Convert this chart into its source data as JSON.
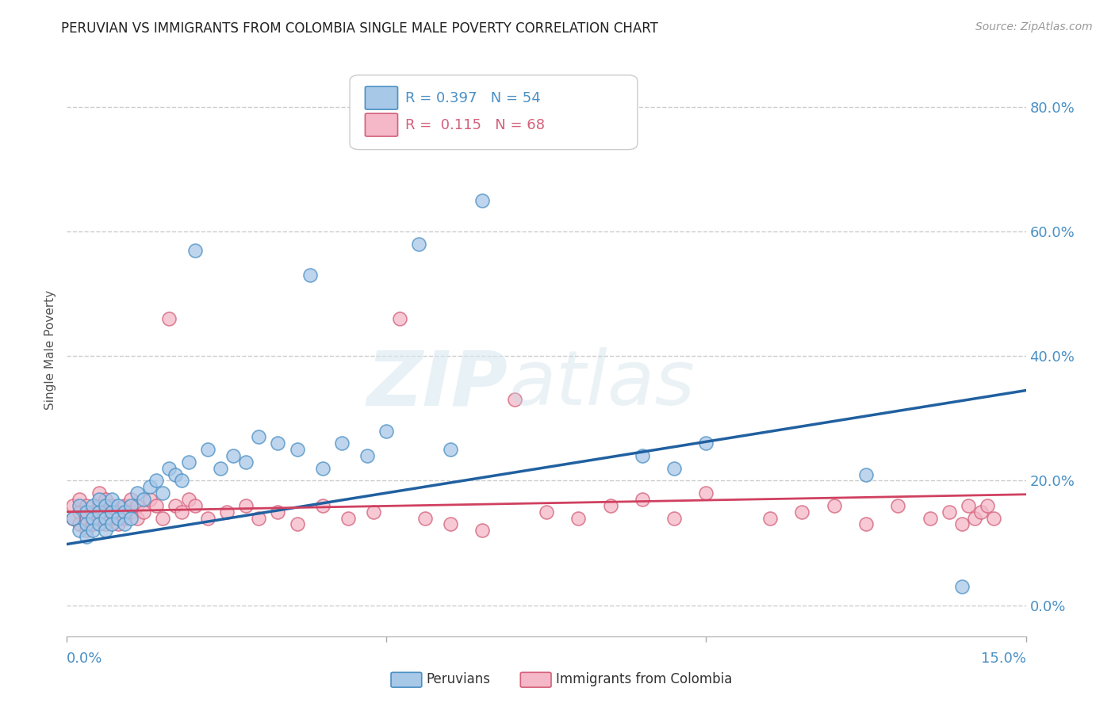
{
  "title": "PERUVIAN VS IMMIGRANTS FROM COLOMBIA SINGLE MALE POVERTY CORRELATION CHART",
  "source": "Source: ZipAtlas.com",
  "ylabel": "Single Male Poverty",
  "legend_label1": "Peruvians",
  "legend_label2": "Immigrants from Colombia",
  "r1": 0.397,
  "n1": 54,
  "r2": 0.115,
  "n2": 68,
  "color_blue_face": "#a8c8e8",
  "color_blue_edge": "#4a90c4",
  "color_pink_face": "#f4b8c8",
  "color_pink_edge": "#d4607a",
  "color_blue_line": "#2060a0",
  "color_pink_line": "#d04060",
  "color_text_blue": "#4a90c4",
  "color_grid": "#cccccc",
  "peruvians_x": [
    0.001,
    0.002,
    0.002,
    0.003,
    0.003,
    0.003,
    0.004,
    0.004,
    0.004,
    0.005,
    0.005,
    0.005,
    0.006,
    0.006,
    0.006,
    0.007,
    0.007,
    0.007,
    0.008,
    0.008,
    0.009,
    0.009,
    0.01,
    0.01,
    0.011,
    0.012,
    0.013,
    0.014,
    0.015,
    0.016,
    0.017,
    0.018,
    0.019,
    0.02,
    0.022,
    0.024,
    0.026,
    0.028,
    0.03,
    0.033,
    0.036,
    0.04,
    0.043,
    0.047,
    0.05,
    0.055,
    0.06,
    0.065,
    0.038,
    0.09,
    0.095,
    0.1,
    0.125,
    0.14
  ],
  "peruvians_y": [
    0.14,
    0.16,
    0.12,
    0.15,
    0.13,
    0.11,
    0.14,
    0.16,
    0.12,
    0.15,
    0.13,
    0.17,
    0.14,
    0.12,
    0.16,
    0.15,
    0.13,
    0.17,
    0.14,
    0.16,
    0.15,
    0.13,
    0.16,
    0.14,
    0.18,
    0.17,
    0.19,
    0.2,
    0.18,
    0.22,
    0.21,
    0.2,
    0.23,
    0.57,
    0.25,
    0.22,
    0.24,
    0.23,
    0.27,
    0.26,
    0.25,
    0.22,
    0.26,
    0.24,
    0.28,
    0.58,
    0.25,
    0.65,
    0.53,
    0.24,
    0.22,
    0.26,
    0.21,
    0.03
  ],
  "colombia_x": [
    0.001,
    0.001,
    0.002,
    0.002,
    0.002,
    0.003,
    0.003,
    0.003,
    0.004,
    0.004,
    0.005,
    0.005,
    0.005,
    0.006,
    0.006,
    0.006,
    0.007,
    0.007,
    0.008,
    0.008,
    0.009,
    0.009,
    0.01,
    0.01,
    0.011,
    0.011,
    0.012,
    0.013,
    0.014,
    0.015,
    0.016,
    0.017,
    0.018,
    0.019,
    0.02,
    0.022,
    0.025,
    0.028,
    0.03,
    0.033,
    0.036,
    0.04,
    0.044,
    0.048,
    0.052,
    0.056,
    0.06,
    0.065,
    0.07,
    0.075,
    0.08,
    0.085,
    0.09,
    0.095,
    0.1,
    0.11,
    0.115,
    0.12,
    0.125,
    0.13,
    0.135,
    0.138,
    0.14,
    0.141,
    0.142,
    0.143,
    0.144,
    0.145
  ],
  "colombia_y": [
    0.14,
    0.16,
    0.15,
    0.13,
    0.17,
    0.14,
    0.16,
    0.12,
    0.15,
    0.13,
    0.16,
    0.14,
    0.18,
    0.15,
    0.13,
    0.17,
    0.14,
    0.16,
    0.15,
    0.13,
    0.16,
    0.14,
    0.15,
    0.17,
    0.16,
    0.14,
    0.15,
    0.17,
    0.16,
    0.14,
    0.46,
    0.16,
    0.15,
    0.17,
    0.16,
    0.14,
    0.15,
    0.16,
    0.14,
    0.15,
    0.13,
    0.16,
    0.14,
    0.15,
    0.46,
    0.14,
    0.13,
    0.12,
    0.33,
    0.15,
    0.14,
    0.16,
    0.17,
    0.14,
    0.18,
    0.14,
    0.15,
    0.16,
    0.13,
    0.16,
    0.14,
    0.15,
    0.13,
    0.16,
    0.14,
    0.15,
    0.16,
    0.14
  ],
  "blue_line_x": [
    0.0,
    0.15
  ],
  "blue_line_y": [
    0.098,
    0.345
  ],
  "pink_line_x": [
    0.0,
    0.15
  ],
  "pink_line_y": [
    0.15,
    0.178
  ],
  "yticks": [
    0.0,
    0.2,
    0.4,
    0.6,
    0.8
  ],
  "ytick_labels": [
    "0.0%",
    "20.0%",
    "40.0%",
    "60.0%",
    "80.0%"
  ],
  "xlim": [
    0.0,
    0.15
  ],
  "ylim": [
    -0.05,
    0.87
  ]
}
